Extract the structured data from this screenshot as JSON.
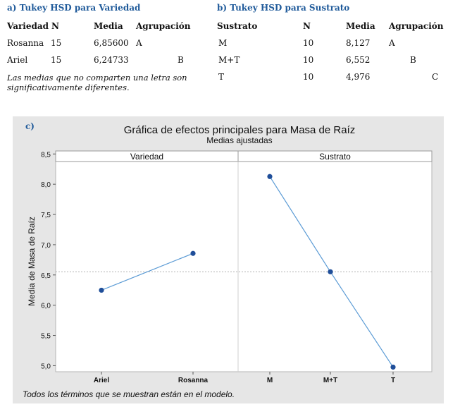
{
  "section_a": {
    "title": "a) Tukey HSD para Variedad",
    "headers": [
      "Variedad",
      "N",
      "Media",
      "Agrupación"
    ],
    "rows": [
      {
        "name": "Rosanna",
        "n": "15",
        "mean": "6,85600",
        "group": "A"
      },
      {
        "name": "Ariel",
        "n": "15",
        "mean": "6,24733",
        "group": "B"
      }
    ],
    "note_line1": "Las medias que no comparten una letra son",
    "note_line2": "significativamente diferentes."
  },
  "section_b": {
    "title": "b) Tukey HSD para Sustrato",
    "headers": [
      "Sustrato",
      "N",
      "Media",
      "Agrupación"
    ],
    "rows": [
      {
        "name": "M",
        "n": "10",
        "mean": "8,127",
        "group": "A"
      },
      {
        "name": "M+T",
        "n": "10",
        "mean": "6,552",
        "group": "B"
      },
      {
        "name": "T",
        "n": "10",
        "mean": "4,976",
        "group": "C"
      }
    ]
  },
  "chart_data": {
    "type": "line",
    "panel_label": "c)",
    "title": "Gráfica de efectos principales para Masa de Raíz",
    "subtitle": "Medias ajustadas",
    "ylabel": "Media de Masa de Raíz",
    "ylim": [
      4.9,
      8.55
    ],
    "yticks": [
      "8,5",
      "8,0",
      "7,5",
      "7,0",
      "6,5",
      "6,0",
      "5,5",
      "5,0"
    ],
    "ytick_values": [
      8.5,
      8.0,
      7.5,
      7.0,
      6.5,
      6.0,
      5.5,
      5.0
    ],
    "reference_line": 6.552,
    "facets": [
      {
        "name": "Variedad",
        "categories": [
          "Ariel",
          "Rosanna"
        ],
        "values": [
          6.24733,
          6.856
        ]
      },
      {
        "name": "Sustrato",
        "categories": [
          "M",
          "M+T",
          "T"
        ],
        "values": [
          8.127,
          6.552,
          4.976
        ]
      }
    ],
    "footnote": "Todos los términos que se muestran están en el modelo.",
    "colors": {
      "line": "#5b9bd5",
      "point": "#1f4e99",
      "panel": "#e6e6e6"
    }
  }
}
